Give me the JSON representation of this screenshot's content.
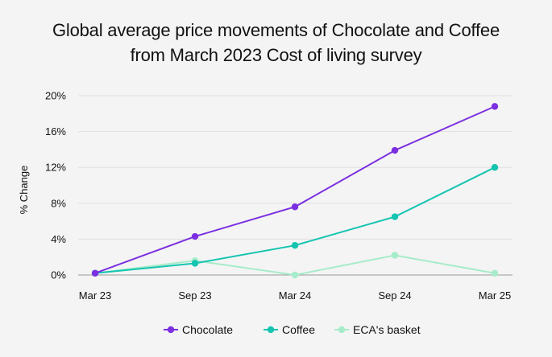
{
  "chart_data": {
    "type": "line",
    "title": "Global average price movements of Chocolate and Coffee",
    "subtitle": "from March 2023 Cost of living survey",
    "xlabel": "",
    "ylabel": "% Change",
    "x": [
      "Mar 23",
      "Sep 23",
      "Mar 24",
      "Sep 24",
      "Mar 25"
    ],
    "ylim": [
      0,
      20
    ],
    "yticks": [
      0,
      4,
      8,
      12,
      16,
      20
    ],
    "ytick_labels": [
      "0%",
      "4%",
      "8%",
      "12%",
      "16%",
      "20%"
    ],
    "grid": true,
    "legend_position": "bottom",
    "series": [
      {
        "name": "Chocolate",
        "color": "#7b2fe0",
        "values": [
          0.2,
          4.3,
          7.6,
          13.9,
          18.8
        ]
      },
      {
        "name": "Coffee",
        "color": "#14c4b1",
        "values": [
          0.2,
          1.3,
          3.3,
          6.5,
          12.0
        ]
      },
      {
        "name": "ECA's basket",
        "color": "#a6ecca",
        "values": [
          0.2,
          1.6,
          0.0,
          2.2,
          0.2
        ]
      }
    ]
  }
}
